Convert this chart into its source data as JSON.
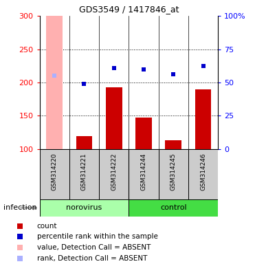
{
  "title": "GDS3549 / 1417846_at",
  "samples": [
    "GSM314220",
    "GSM314221",
    "GSM314222",
    "GSM314244",
    "GSM314245",
    "GSM314246"
  ],
  "bar_values": [
    300,
    120,
    193,
    147,
    113,
    190
  ],
  "rank_values": [
    210,
    198,
    222,
    220,
    212,
    225
  ],
  "absent_flags": [
    true,
    false,
    false,
    false,
    false,
    false
  ],
  "bar_color_normal": "#cc0000",
  "bar_color_absent": "#ffb0b0",
  "rank_color_normal": "#0000cc",
  "rank_color_absent": "#aab0ff",
  "ylim_left": [
    100,
    300
  ],
  "ylim_right": [
    0,
    100
  ],
  "left_ticks": [
    100,
    150,
    200,
    250,
    300
  ],
  "right_ticks": [
    0,
    25,
    50,
    75,
    100
  ],
  "right_tick_labels": [
    "0",
    "25",
    "50",
    "75",
    "100%"
  ],
  "dotted_lines": [
    150,
    200,
    250
  ],
  "groups": [
    {
      "label": "norovirus",
      "start": 0,
      "end": 2,
      "color": "#aaffaa"
    },
    {
      "label": "control",
      "start": 3,
      "end": 5,
      "color": "#44dd44"
    }
  ],
  "group_label": "infection",
  "legend_items": [
    {
      "label": "count",
      "color": "#cc0000"
    },
    {
      "label": "percentile rank within the sample",
      "color": "#0000cc"
    },
    {
      "label": "value, Detection Call = ABSENT",
      "color": "#ffb0b0"
    },
    {
      "label": "rank, Detection Call = ABSENT",
      "color": "#aab0ff"
    }
  ]
}
